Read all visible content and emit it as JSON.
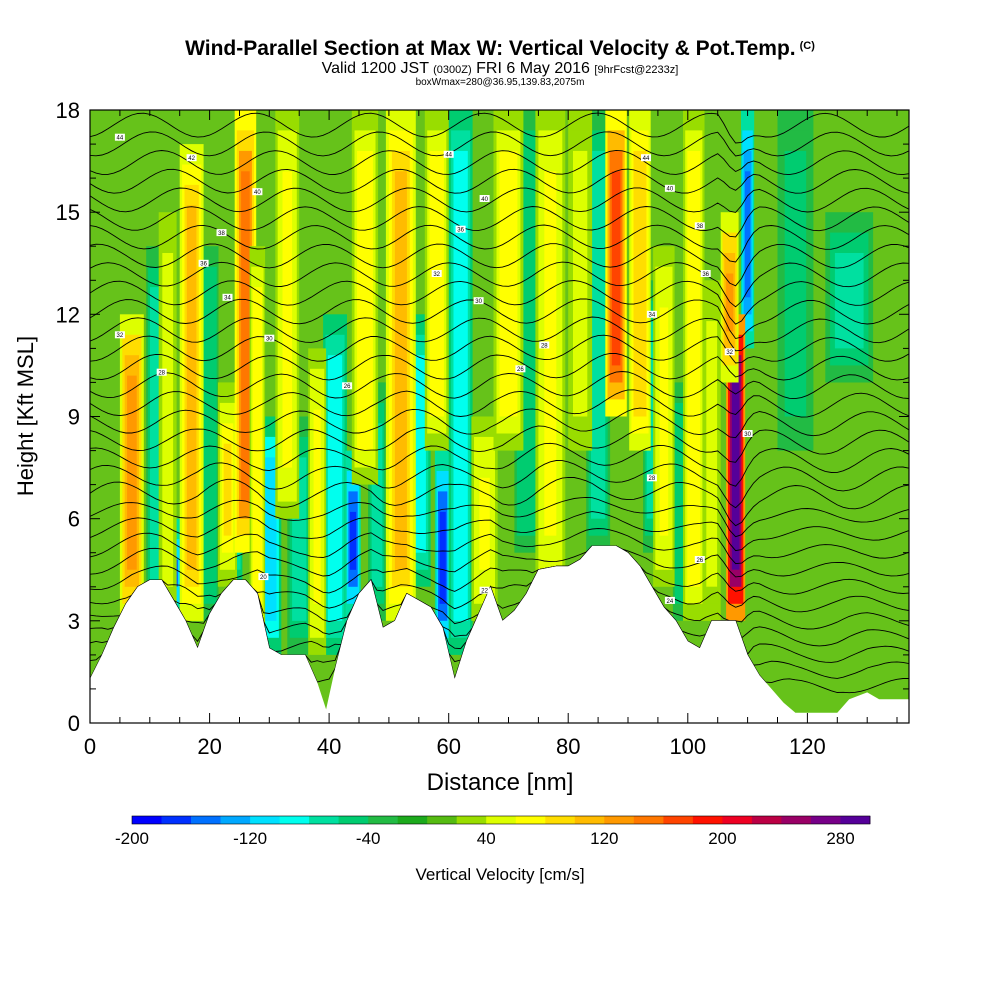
{
  "title": {
    "main": "Wind-Parallel Section at Max W: Vertical Velocity & Pot.Temp.",
    "copyright": "(C)",
    "valid_prefix": "Valid 1200 JST",
    "valid_utc": "(0300Z)",
    "valid_date": "FRI 6 May 2016",
    "forecast": "[9hrFcst@2233z]",
    "box": "boxWmax=280@36.95,139.83,2075m"
  },
  "chart_data": {
    "type": "heatmap",
    "xlabel": "Distance [nm]",
    "ylabel": "Height [Kft MSL]",
    "xlim": [
      0,
      137
    ],
    "ylim": [
      0,
      18
    ],
    "xticks": [
      0,
      20,
      40,
      60,
      80,
      100,
      120
    ],
    "yticks": [
      0,
      3,
      6,
      9,
      12,
      15,
      18
    ],
    "colorbar": {
      "label": "Vertical Velocity [cm/s]",
      "min": -200,
      "max": 300,
      "tick_values": [
        -200,
        -120,
        -40,
        40,
        120,
        200,
        280
      ],
      "colors": [
        "#0000ff",
        "#0030ff",
        "#0070ff",
        "#00a8ff",
        "#00e0ff",
        "#00ffee",
        "#00e0a0",
        "#00cc70",
        "#22bb44",
        "#1caa1c",
        "#55bb11",
        "#99dd00",
        "#ddff00",
        "#ffff00",
        "#ffdd00",
        "#ffbb00",
        "#ff9900",
        "#ff7700",
        "#ff4400",
        "#ff1100",
        "#ee0022",
        "#bb0044",
        "#990066",
        "#770088",
        "#550099"
      ]
    },
    "terrain": [
      [
        0,
        1.3
      ],
      [
        2,
        2.0
      ],
      [
        4,
        2.8
      ],
      [
        6,
        3.5
      ],
      [
        8,
        4.0
      ],
      [
        10,
        4.2
      ],
      [
        12,
        4.2
      ],
      [
        14,
        3.6
      ],
      [
        16,
        3.0
      ],
      [
        18,
        2.2
      ],
      [
        20,
        3.2
      ],
      [
        22,
        3.8
      ],
      [
        24,
        4.2
      ],
      [
        26,
        4.2
      ],
      [
        28,
        3.8
      ],
      [
        30,
        2.2
      ],
      [
        32,
        2.0
      ],
      [
        34,
        2.0
      ],
      [
        36,
        2.0
      ],
      [
        38,
        1.2
      ],
      [
        39.5,
        0.4
      ],
      [
        41,
        1.6
      ],
      [
        43,
        3.0
      ],
      [
        45,
        3.8
      ],
      [
        47,
        4.2
      ],
      [
        49,
        2.8
      ],
      [
        51,
        3.0
      ],
      [
        53,
        3.8
      ],
      [
        55,
        3.6
      ],
      [
        57,
        3.4
      ],
      [
        59,
        2.8
      ],
      [
        61,
        1.3
      ],
      [
        63,
        2.4
      ],
      [
        65,
        3.2
      ],
      [
        67,
        4.0
      ],
      [
        69,
        3.0
      ],
      [
        71,
        3.3
      ],
      [
        73,
        3.8
      ],
      [
        75,
        4.5
      ],
      [
        78,
        4.6
      ],
      [
        80,
        4.6
      ],
      [
        82,
        4.8
      ],
      [
        84,
        5.2
      ],
      [
        88,
        5.2
      ],
      [
        90,
        5.0
      ],
      [
        92,
        4.6
      ],
      [
        94,
        4.0
      ],
      [
        96,
        3.4
      ],
      [
        98,
        3.0
      ],
      [
        100,
        2.4
      ],
      [
        102,
        2.2
      ],
      [
        104,
        3.0
      ],
      [
        108,
        3.0
      ],
      [
        110,
        2.0
      ],
      [
        112,
        1.4
      ],
      [
        114,
        1.0
      ],
      [
        116,
        0.6
      ],
      [
        118,
        0.3
      ],
      [
        125,
        0.3
      ],
      [
        127,
        0.7
      ],
      [
        130,
        0.9
      ],
      [
        132,
        0.7
      ],
      [
        137,
        0.7
      ]
    ],
    "updrafts": [
      {
        "x": 7,
        "y0": 3,
        "y1": 12,
        "w": 130,
        "width": 2.0
      },
      {
        "x": 13,
        "y0": 3,
        "y1": 15,
        "w": 50,
        "width": 1.5
      },
      {
        "x": 17,
        "y0": 3,
        "y1": 17,
        "w": 110,
        "width": 2.0
      },
      {
        "x": 23,
        "y0": 4,
        "y1": 10,
        "w": 80,
        "width": 1.6
      },
      {
        "x": 26,
        "y0": 5,
        "y1": 18,
        "w": 140,
        "width": 1.8
      },
      {
        "x": 28,
        "y0": 2,
        "y1": 14,
        "w": 70,
        "width": 1.3
      },
      {
        "x": 33,
        "y0": 6,
        "y1": 18,
        "w": 60,
        "width": 2.0
      },
      {
        "x": 38,
        "y0": 2,
        "y1": 11,
        "w": 60,
        "width": 1.5
      },
      {
        "x": 46,
        "y0": 7,
        "y1": 18,
        "w": 70,
        "width": 2.2
      },
      {
        "x": 52,
        "y0": 3,
        "y1": 18,
        "w": 100,
        "width": 2.5
      },
      {
        "x": 58,
        "y0": 8,
        "y1": 18,
        "w": 70,
        "width": 2.0
      },
      {
        "x": 66,
        "y0": 3,
        "y1": 9,
        "w": 60,
        "width": 2.2
      },
      {
        "x": 70,
        "y0": 8,
        "y1": 18,
        "w": 70,
        "width": 2.5
      },
      {
        "x": 77,
        "y0": 4,
        "y1": 18,
        "w": 60,
        "width": 2.5
      },
      {
        "x": 82,
        "y0": 8,
        "y1": 18,
        "w": 50,
        "width": 2.0
      },
      {
        "x": 88,
        "y0": 9,
        "y1": 18,
        "w": 160,
        "width": 1.8
      },
      {
        "x": 92,
        "y0": 8,
        "y1": 18,
        "w": 90,
        "width": 1.8
      },
      {
        "x": 96,
        "y0": 4,
        "y1": 14,
        "w": 60,
        "width": 1.8
      },
      {
        "x": 101,
        "y0": 3,
        "y1": 18,
        "w": 70,
        "width": 1.8
      },
      {
        "x": 104,
        "y0": 3,
        "y1": 13,
        "w": 50,
        "width": 1.5
      },
      {
        "x": 108,
        "y0": 3,
        "y1": 12,
        "w": 280,
        "width": 1.6
      },
      {
        "x": 107,
        "y0": 10,
        "y1": 15,
        "w": 120,
        "width": 1.5
      }
    ],
    "downdrafts": [
      {
        "x": 11,
        "y0": 3,
        "y1": 14,
        "w": -80,
        "width": 1.6
      },
      {
        "x": 14,
        "y0": 3,
        "y1": 6,
        "w": -170,
        "width": 1.2
      },
      {
        "x": 20,
        "y0": 3,
        "y1": 14,
        "w": -60,
        "width": 1.5
      },
      {
        "x": 24,
        "y0": 4,
        "y1": 9,
        "w": -100,
        "width": 1.5
      },
      {
        "x": 30,
        "y0": 2,
        "y1": 9,
        "w": -120,
        "width": 2.0
      },
      {
        "x": 35,
        "y0": 2,
        "y1": 9,
        "w": -80,
        "width": 2.0
      },
      {
        "x": 41,
        "y0": 2,
        "y1": 12,
        "w": -100,
        "width": 2.0
      },
      {
        "x": 44,
        "y0": 3,
        "y1": 8,
        "w": -170,
        "width": 1.3
      },
      {
        "x": 48,
        "y0": 3,
        "y1": 10,
        "w": -70,
        "width": 1.5
      },
      {
        "x": 55,
        "y0": 4,
        "y1": 12,
        "w": -90,
        "width": 2.0
      },
      {
        "x": 59,
        "y0": 2,
        "y1": 8,
        "w": -170,
        "width": 1.3
      },
      {
        "x": 62,
        "y0": 2,
        "y1": 18,
        "w": -90,
        "width": 2.0
      },
      {
        "x": 73,
        "y0": 5,
        "y1": 18,
        "w": -60,
        "width": 2.0
      },
      {
        "x": 85,
        "y0": 5,
        "y1": 18,
        "w": -70,
        "width": 2.0
      },
      {
        "x": 94,
        "y0": 5,
        "y1": 13,
        "w": -80,
        "width": 1.5
      },
      {
        "x": 99,
        "y0": 3,
        "y1": 10,
        "w": -60,
        "width": 1.5
      },
      {
        "x": 110,
        "y0": 11,
        "y1": 18,
        "w": -150,
        "width": 1.1
      },
      {
        "x": 118,
        "y0": 8,
        "y1": 18,
        "w": -50,
        "width": 3.0
      },
      {
        "x": 127,
        "y0": 10,
        "y1": 15,
        "w": -70,
        "width": 4.0
      }
    ],
    "theta_labels": [
      {
        "x": 5,
        "y": 17.2,
        "text": "44"
      },
      {
        "x": 17,
        "y": 16.6,
        "text": "42"
      },
      {
        "x": 28,
        "y": 15.6,
        "text": "40"
      },
      {
        "x": 22,
        "y": 14.4,
        "text": "38"
      },
      {
        "x": 19,
        "y": 13.5,
        "text": "36"
      },
      {
        "x": 23,
        "y": 12.5,
        "text": "34"
      },
      {
        "x": 5,
        "y": 11.4,
        "text": "32"
      },
      {
        "x": 30,
        "y": 11.3,
        "text": "30"
      },
      {
        "x": 12,
        "y": 10.3,
        "text": "28"
      },
      {
        "x": 43,
        "y": 9.9,
        "text": "26"
      },
      {
        "x": 60,
        "y": 16.7,
        "text": "44"
      },
      {
        "x": 66,
        "y": 15.4,
        "text": "40"
      },
      {
        "x": 62,
        "y": 14.5,
        "text": "36"
      },
      {
        "x": 58,
        "y": 13.2,
        "text": "32"
      },
      {
        "x": 65,
        "y": 12.4,
        "text": "30"
      },
      {
        "x": 76,
        "y": 11.1,
        "text": "28"
      },
      {
        "x": 72,
        "y": 10.4,
        "text": "26"
      },
      {
        "x": 93,
        "y": 16.6,
        "text": "44"
      },
      {
        "x": 97,
        "y": 15.7,
        "text": "40"
      },
      {
        "x": 102,
        "y": 14.6,
        "text": "38"
      },
      {
        "x": 103,
        "y": 13.2,
        "text": "36"
      },
      {
        "x": 94,
        "y": 12.0,
        "text": "34"
      },
      {
        "x": 107,
        "y": 10.9,
        "text": "32"
      },
      {
        "x": 110,
        "y": 8.5,
        "text": "30"
      },
      {
        "x": 94,
        "y": 7.2,
        "text": "28"
      },
      {
        "x": 102,
        "y": 4.8,
        "text": "26"
      },
      {
        "x": 97,
        "y": 3.6,
        "text": "24"
      },
      {
        "x": 66,
        "y": 3.9,
        "text": "22"
      },
      {
        "x": 29,
        "y": 4.3,
        "text": "20"
      }
    ]
  }
}
